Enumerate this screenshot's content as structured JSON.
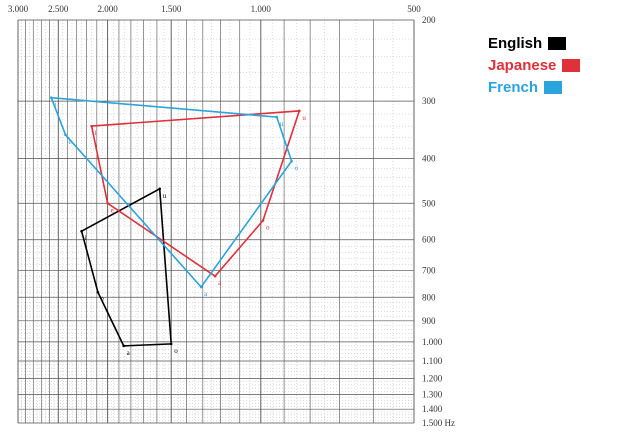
{
  "chart_data": {
    "type": "scatter",
    "title": "",
    "x_axis": {
      "scale": "log",
      "reversed": true,
      "range": [
        3000,
        500
      ],
      "tick_labels": [
        {
          "value": 3000,
          "label": "3.000"
        },
        {
          "value": 2500,
          "label": "2.500"
        },
        {
          "value": 2000,
          "label": "2.000"
        },
        {
          "value": 1500,
          "label": "1.500"
        },
        {
          "value": 1000,
          "label": "1.000"
        },
        {
          "value": 500,
          "label": "500"
        }
      ]
    },
    "y_axis": {
      "scale": "log",
      "range": [
        200,
        1500
      ],
      "unit": "Hz",
      "tick_labels": [
        {
          "value": 200,
          "label": "200"
        },
        {
          "value": 300,
          "label": "300"
        },
        {
          "value": 400,
          "label": "400"
        },
        {
          "value": 500,
          "label": "500"
        },
        {
          "value": 600,
          "label": "600"
        },
        {
          "value": 700,
          "label": "700"
        },
        {
          "value": 800,
          "label": "800"
        },
        {
          "value": 900,
          "label": "900"
        },
        {
          "value": 1000,
          "label": "1.000"
        },
        {
          "value": 1100,
          "label": "1.100"
        },
        {
          "value": 1200,
          "label": "1.200"
        },
        {
          "value": 1300,
          "label": "1.300"
        },
        {
          "value": 1400,
          "label": "1.400"
        },
        {
          "value": 1500,
          "label": "1.500 Hz"
        }
      ]
    },
    "grid": true,
    "legend_position": "top-right",
    "series": [
      {
        "name": "English",
        "color": "#000000",
        "points": [
          {
            "label": "i",
            "x": 2250,
            "y": 575
          },
          {
            "label": "u",
            "x": 1580,
            "y": 465
          },
          {
            "label": "o",
            "x": 1500,
            "y": 1010
          },
          {
            "label": "a",
            "x": 1860,
            "y": 1020
          },
          {
            "label": "e",
            "x": 2090,
            "y": 780
          }
        ]
      },
      {
        "name": "Japanese",
        "color": "#e0303a",
        "points": [
          {
            "label": "i",
            "x": 2150,
            "y": 340
          },
          {
            "label": "u",
            "x": 840,
            "y": 315
          },
          {
            "label": "o",
            "x": 990,
            "y": 545
          },
          {
            "label": "a",
            "x": 1230,
            "y": 720
          },
          {
            "label": "e",
            "x": 2000,
            "y": 500
          }
        ]
      },
      {
        "name": "French",
        "color": "#2aa4dc",
        "points": [
          {
            "label": "i",
            "x": 2580,
            "y": 295
          },
          {
            "label": "u",
            "x": 930,
            "y": 325
          },
          {
            "label": "o",
            "x": 870,
            "y": 405
          },
          {
            "label": "a",
            "x": 1310,
            "y": 760
          },
          {
            "label": "e",
            "x": 2420,
            "y": 355
          }
        ]
      }
    ]
  }
}
